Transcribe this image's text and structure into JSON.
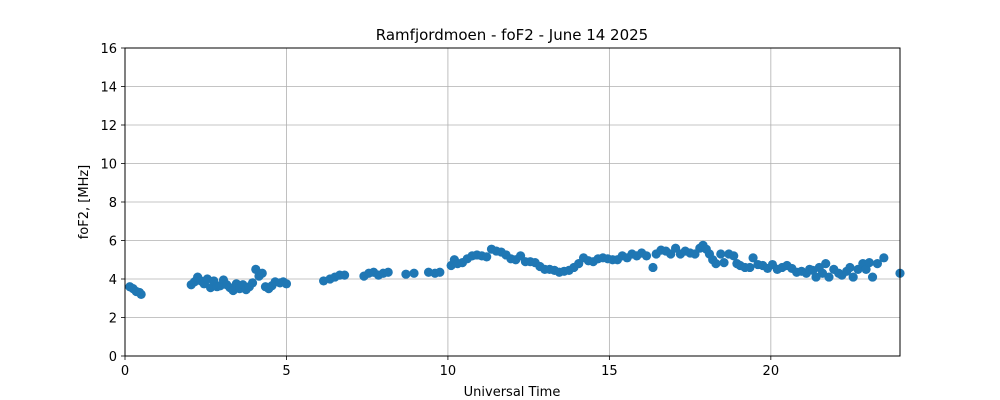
{
  "chart_data": {
    "type": "scatter",
    "title": "Ramfjordmoen - foF2 - June 14 2025",
    "xlabel": "Universal Time",
    "ylabel": "foF2, [MHz]",
    "xlim": [
      0,
      24
    ],
    "ylim": [
      0,
      16
    ],
    "xticks": [
      0,
      5,
      10,
      15,
      20
    ],
    "yticks": [
      0,
      2,
      4,
      6,
      8,
      10,
      12,
      14,
      16
    ],
    "grid": true,
    "marker_color": "#1f77b4",
    "series": [
      {
        "points": [
          [
            0.15,
            3.6
          ],
          [
            0.25,
            3.5
          ],
          [
            0.35,
            3.35
          ],
          [
            0.45,
            3.3
          ],
          [
            0.5,
            3.2
          ],
          [
            2.05,
            3.7
          ],
          [
            2.15,
            3.85
          ],
          [
            2.25,
            4.1
          ],
          [
            2.35,
            3.9
          ],
          [
            2.45,
            3.75
          ],
          [
            2.55,
            4.0
          ],
          [
            2.65,
            3.55
          ],
          [
            2.75,
            3.9
          ],
          [
            2.85,
            3.6
          ],
          [
            2.95,
            3.65
          ],
          [
            3.05,
            3.95
          ],
          [
            3.15,
            3.7
          ],
          [
            3.25,
            3.55
          ],
          [
            3.35,
            3.4
          ],
          [
            3.45,
            3.75
          ],
          [
            3.55,
            3.5
          ],
          [
            3.65,
            3.7
          ],
          [
            3.75,
            3.45
          ],
          [
            3.85,
            3.6
          ],
          [
            3.95,
            3.8
          ],
          [
            4.05,
            4.5
          ],
          [
            4.15,
            4.15
          ],
          [
            4.25,
            4.3
          ],
          [
            4.35,
            3.6
          ],
          [
            4.45,
            3.5
          ],
          [
            4.55,
            3.65
          ],
          [
            4.65,
            3.85
          ],
          [
            4.8,
            3.8
          ],
          [
            4.9,
            3.85
          ],
          [
            5.0,
            3.75
          ],
          [
            6.15,
            3.9
          ],
          [
            6.35,
            4.0
          ],
          [
            6.5,
            4.1
          ],
          [
            6.65,
            4.2
          ],
          [
            6.8,
            4.2
          ],
          [
            7.4,
            4.15
          ],
          [
            7.55,
            4.3
          ],
          [
            7.7,
            4.35
          ],
          [
            7.85,
            4.2
          ],
          [
            8.0,
            4.3
          ],
          [
            8.15,
            4.35
          ],
          [
            8.7,
            4.25
          ],
          [
            8.95,
            4.3
          ],
          [
            9.4,
            4.35
          ],
          [
            9.6,
            4.3
          ],
          [
            9.75,
            4.35
          ],
          [
            10.1,
            4.7
          ],
          [
            10.2,
            5.0
          ],
          [
            10.3,
            4.8
          ],
          [
            10.45,
            4.85
          ],
          [
            10.6,
            5.05
          ],
          [
            10.75,
            5.2
          ],
          [
            10.9,
            5.25
          ],
          [
            11.05,
            5.2
          ],
          [
            11.2,
            5.15
          ],
          [
            11.35,
            5.55
          ],
          [
            11.5,
            5.45
          ],
          [
            11.65,
            5.4
          ],
          [
            11.8,
            5.25
          ],
          [
            11.95,
            5.05
          ],
          [
            12.1,
            5.0
          ],
          [
            12.25,
            5.2
          ],
          [
            12.4,
            4.9
          ],
          [
            12.55,
            4.9
          ],
          [
            12.7,
            4.85
          ],
          [
            12.85,
            4.65
          ],
          [
            13.0,
            4.5
          ],
          [
            13.15,
            4.5
          ],
          [
            13.3,
            4.45
          ],
          [
            13.45,
            4.35
          ],
          [
            13.6,
            4.4
          ],
          [
            13.75,
            4.45
          ],
          [
            13.9,
            4.6
          ],
          [
            14.05,
            4.8
          ],
          [
            14.2,
            5.1
          ],
          [
            14.35,
            4.95
          ],
          [
            14.5,
            4.9
          ],
          [
            14.65,
            5.05
          ],
          [
            14.8,
            5.1
          ],
          [
            14.95,
            5.05
          ],
          [
            15.1,
            5.0
          ],
          [
            15.25,
            5.0
          ],
          [
            15.4,
            5.2
          ],
          [
            15.55,
            5.1
          ],
          [
            15.7,
            5.3
          ],
          [
            15.85,
            5.2
          ],
          [
            16.0,
            5.35
          ],
          [
            16.15,
            5.2
          ],
          [
            16.35,
            4.6
          ],
          [
            16.45,
            5.3
          ],
          [
            16.6,
            5.5
          ],
          [
            16.75,
            5.45
          ],
          [
            16.9,
            5.3
          ],
          [
            17.05,
            5.6
          ],
          [
            17.2,
            5.3
          ],
          [
            17.35,
            5.45
          ],
          [
            17.5,
            5.35
          ],
          [
            17.65,
            5.3
          ],
          [
            17.8,
            5.6
          ],
          [
            17.9,
            5.75
          ],
          [
            18.0,
            5.55
          ],
          [
            18.1,
            5.3
          ],
          [
            18.2,
            5.0
          ],
          [
            18.3,
            4.8
          ],
          [
            18.45,
            5.3
          ],
          [
            18.55,
            4.85
          ],
          [
            18.7,
            5.3
          ],
          [
            18.85,
            5.2
          ],
          [
            18.95,
            4.8
          ],
          [
            19.05,
            4.7
          ],
          [
            19.2,
            4.6
          ],
          [
            19.35,
            4.6
          ],
          [
            19.45,
            5.1
          ],
          [
            19.6,
            4.75
          ],
          [
            19.75,
            4.7
          ],
          [
            19.9,
            4.55
          ],
          [
            20.05,
            4.75
          ],
          [
            20.2,
            4.5
          ],
          [
            20.35,
            4.6
          ],
          [
            20.5,
            4.7
          ],
          [
            20.65,
            4.55
          ],
          [
            20.8,
            4.35
          ],
          [
            20.95,
            4.4
          ],
          [
            21.1,
            4.3
          ],
          [
            21.2,
            4.5
          ],
          [
            21.3,
            4.45
          ],
          [
            21.4,
            4.1
          ],
          [
            21.5,
            4.6
          ],
          [
            21.6,
            4.3
          ],
          [
            21.7,
            4.8
          ],
          [
            21.8,
            4.1
          ],
          [
            21.95,
            4.5
          ],
          [
            22.1,
            4.3
          ],
          [
            22.2,
            4.2
          ],
          [
            22.35,
            4.4
          ],
          [
            22.45,
            4.6
          ],
          [
            22.55,
            4.1
          ],
          [
            22.7,
            4.5
          ],
          [
            22.85,
            4.8
          ],
          [
            22.95,
            4.5
          ],
          [
            23.05,
            4.85
          ],
          [
            23.15,
            4.1
          ],
          [
            23.3,
            4.8
          ],
          [
            23.5,
            5.1
          ],
          [
            24.0,
            4.3
          ]
        ]
      }
    ]
  }
}
